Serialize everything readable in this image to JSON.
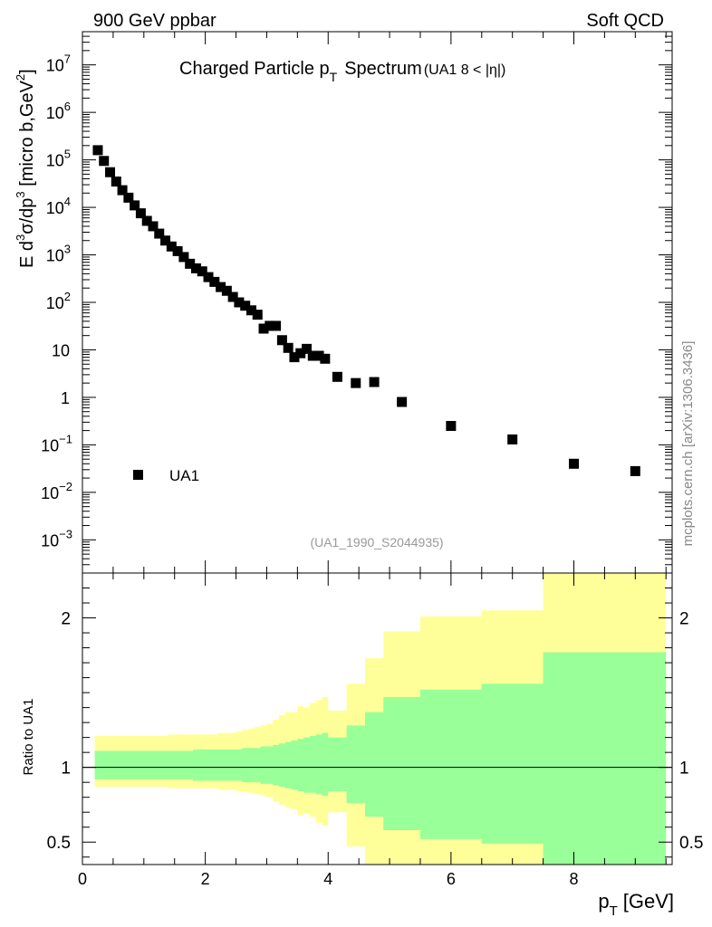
{
  "header": {
    "left": "900 GeV ppbar",
    "right": "Soft QCD"
  },
  "side_label": "mcplots.cern.ch [arXiv:1306.3436]",
  "chart_data": {
    "type": "scatter",
    "title_main": "Charged Particle p",
    "title_sub": "T",
    "title_word": "Spectrum",
    "title_detail": "(UA1   8 < |η|)",
    "analysis_id": "(UA1_1990_S2044935)",
    "ylabel": "E d³σ/dp³ [micro b,GeV²]",
    "ylabel_parts": [
      "E d",
      "3",
      "σ/dp",
      "3",
      " [micro b,GeV",
      "2",
      "]"
    ],
    "xlabel_main": "p",
    "xlabel_sub": "T",
    "xlabel_unit": "[GeV]",
    "ratio_ylabel": "Ratio to UA1",
    "xlim": [
      0,
      9.6
    ],
    "ylim_log": [
      0.0002,
      50000000
    ],
    "ratio_ylim": [
      0.35,
      2.3
    ],
    "x_ticks": [
      "0",
      "2",
      "4",
      "6",
      "8"
    ],
    "y_tick_labels": [
      {
        "v": 0.001,
        "base": "10",
        "exp": "−3"
      },
      {
        "v": 0.01,
        "base": "10",
        "exp": "−2"
      },
      {
        "v": 0.1,
        "base": "10",
        "exp": "−1"
      },
      {
        "v": 1,
        "base": "1",
        "exp": ""
      },
      {
        "v": 10,
        "base": "10",
        "exp": ""
      },
      {
        "v": 100,
        "base": "10",
        "exp": "2"
      },
      {
        "v": 1000,
        "base": "10",
        "exp": "3"
      },
      {
        "v": 10000,
        "base": "10",
        "exp": "4"
      },
      {
        "v": 100000,
        "base": "10",
        "exp": "5"
      },
      {
        "v": 1000000,
        "base": "10",
        "exp": "6"
      },
      {
        "v": 10000000,
        "base": "10",
        "exp": "7"
      }
    ],
    "ratio_ticks": [
      {
        "v": 0.5,
        "label": "0.5"
      },
      {
        "v": 1,
        "label": "1"
      },
      {
        "v": 2,
        "label": "2"
      }
    ],
    "legend": [
      {
        "name": "UA1",
        "marker": "filled-square",
        "position": "bottom-left"
      }
    ],
    "series": [
      {
        "name": "UA1",
        "x": [
          0.25,
          0.35,
          0.45,
          0.55,
          0.65,
          0.75,
          0.85,
          0.95,
          1.05,
          1.15,
          1.25,
          1.35,
          1.45,
          1.55,
          1.65,
          1.75,
          1.85,
          1.95,
          2.05,
          2.15,
          2.25,
          2.35,
          2.45,
          2.55,
          2.65,
          2.75,
          2.85,
          2.95,
          3.05,
          3.15,
          3.25,
          3.35,
          3.45,
          3.55,
          3.65,
          3.75,
          3.85,
          3.95,
          4.15,
          4.45,
          4.75,
          5.2,
          6.0,
          7.0,
          8.0,
          9.0
        ],
        "y": [
          160000,
          95000,
          55000,
          35000,
          23000,
          16000,
          11000,
          7500,
          5200,
          4000,
          2800,
          2000,
          1500,
          1200,
          900,
          650,
          520,
          450,
          340,
          270,
          210,
          175,
          130,
          100,
          85,
          68,
          55,
          28,
          32,
          32,
          16,
          11,
          7,
          8.5,
          10.5,
          7.5,
          7.5,
          6.5,
          2.7,
          2.0,
          2.1,
          0.8,
          0.25,
          0.13,
          0.04,
          0.028
        ]
      }
    ],
    "ratio_bands": {
      "edges": [
        0.2,
        0.3,
        0.4,
        0.5,
        0.6,
        0.7,
        0.8,
        0.9,
        1.0,
        1.1,
        1.2,
        1.3,
        1.4,
        1.5,
        1.6,
        1.7,
        1.8,
        1.9,
        2.0,
        2.1,
        2.2,
        2.3,
        2.4,
        2.5,
        2.6,
        2.7,
        2.8,
        2.9,
        3.0,
        3.1,
        3.2,
        3.3,
        3.4,
        3.5,
        3.6,
        3.7,
        3.8,
        3.9,
        4.0,
        4.3,
        4.6,
        4.9,
        5.5,
        6.5,
        7.5,
        9.5
      ],
      "yellow_hi": [
        1.21,
        1.21,
        1.21,
        1.21,
        1.21,
        1.21,
        1.21,
        1.21,
        1.21,
        1.21,
        1.21,
        1.21,
        1.22,
        1.22,
        1.22,
        1.22,
        1.22,
        1.22,
        1.22,
        1.22,
        1.23,
        1.23,
        1.23,
        1.24,
        1.25,
        1.26,
        1.27,
        1.28,
        1.29,
        1.32,
        1.35,
        1.37,
        1.37,
        1.41,
        1.4,
        1.43,
        1.45,
        1.47,
        1.38,
        1.56,
        1.73,
        1.91,
        2.01,
        2.05,
        2.3
      ],
      "yellow_lo": [
        0.87,
        0.87,
        0.87,
        0.87,
        0.87,
        0.87,
        0.87,
        0.87,
        0.87,
        0.87,
        0.87,
        0.87,
        0.86,
        0.86,
        0.86,
        0.86,
        0.86,
        0.86,
        0.86,
        0.86,
        0.85,
        0.85,
        0.85,
        0.84,
        0.84,
        0.83,
        0.82,
        0.81,
        0.8,
        0.77,
        0.75,
        0.73,
        0.72,
        0.68,
        0.69,
        0.67,
        0.63,
        0.61,
        0.7,
        0.47,
        0.35,
        0.35,
        0.35,
        0.35,
        0.35
      ],
      "green_hi": [
        1.11,
        1.11,
        1.11,
        1.11,
        1.11,
        1.11,
        1.11,
        1.11,
        1.11,
        1.11,
        1.11,
        1.11,
        1.11,
        1.11,
        1.11,
        1.11,
        1.12,
        1.12,
        1.12,
        1.12,
        1.12,
        1.12,
        1.12,
        1.12,
        1.13,
        1.13,
        1.13,
        1.14,
        1.14,
        1.15,
        1.16,
        1.17,
        1.18,
        1.19,
        1.2,
        1.21,
        1.22,
        1.23,
        1.2,
        1.28,
        1.37,
        1.47,
        1.52,
        1.56,
        1.77
      ],
      "green_lo": [
        0.92,
        0.92,
        0.92,
        0.92,
        0.92,
        0.92,
        0.92,
        0.92,
        0.92,
        0.92,
        0.92,
        0.92,
        0.92,
        0.92,
        0.92,
        0.92,
        0.91,
        0.91,
        0.91,
        0.91,
        0.91,
        0.91,
        0.91,
        0.91,
        0.9,
        0.9,
        0.9,
        0.89,
        0.89,
        0.88,
        0.87,
        0.86,
        0.85,
        0.84,
        0.83,
        0.83,
        0.82,
        0.81,
        0.84,
        0.76,
        0.67,
        0.58,
        0.52,
        0.49,
        0.35
      ],
      "yellow_color": "#ffff99",
      "green_color": "#99ff99"
    }
  }
}
